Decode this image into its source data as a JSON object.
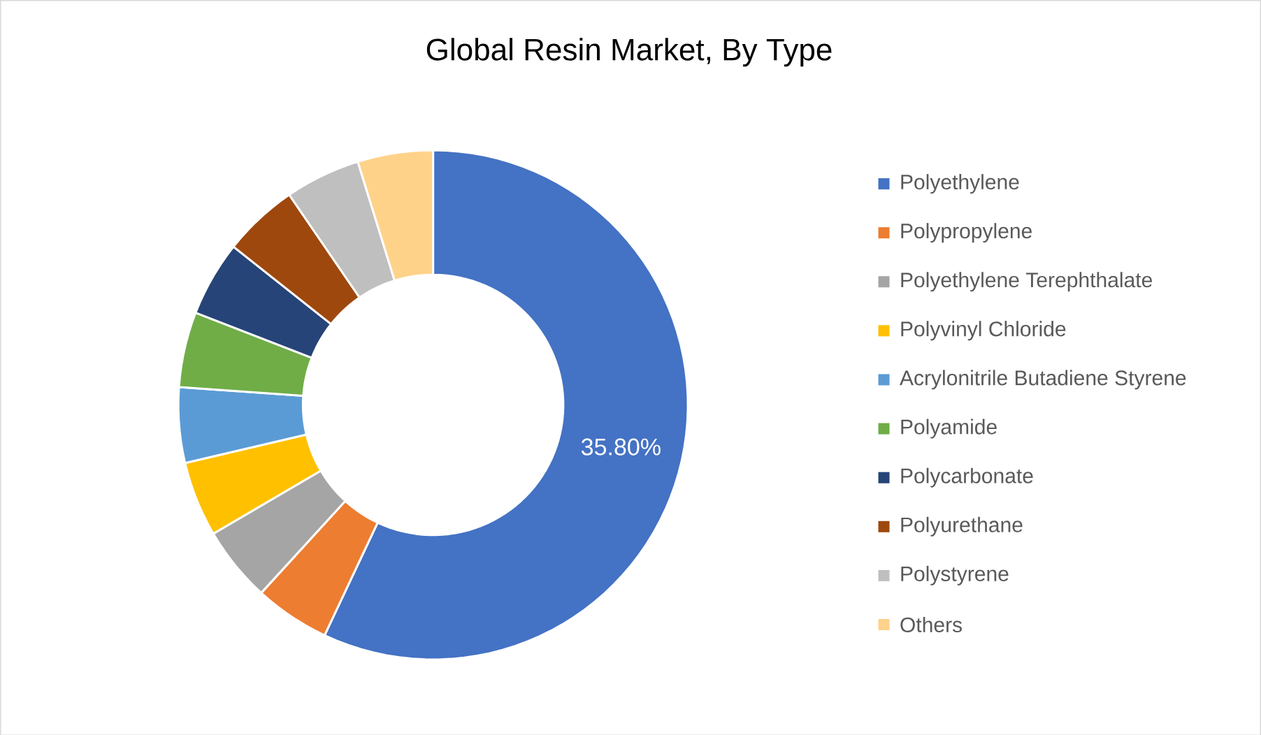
{
  "chart_data": {
    "type": "donut",
    "title": "Global Resin Market, By Type",
    "categories": [
      "Polyethylene",
      "Polypropylene",
      "Polyethylene Terephthalate",
      "Polyvinyl Chloride",
      "Acrylonitrile Butadiene Styrene",
      "Polyamide",
      "Polycarbonate",
      "Polyurethane",
      "Polystyrene",
      "Others"
    ],
    "values": [
      35.8,
      3.0,
      3.0,
      3.0,
      3.0,
      3.0,
      3.0,
      3.0,
      3.0,
      3.0
    ],
    "colors": [
      "#4472c4",
      "#ed7d31",
      "#a5a5a5",
      "#ffc000",
      "#5b9bd5",
      "#70ad47",
      "#264478",
      "#9e480e",
      "#bfbfbf",
      "#ffd28a"
    ],
    "value_labels": [
      "35.80%",
      null,
      null,
      null,
      null,
      null,
      null,
      null,
      null,
      null
    ],
    "legend": "right"
  }
}
